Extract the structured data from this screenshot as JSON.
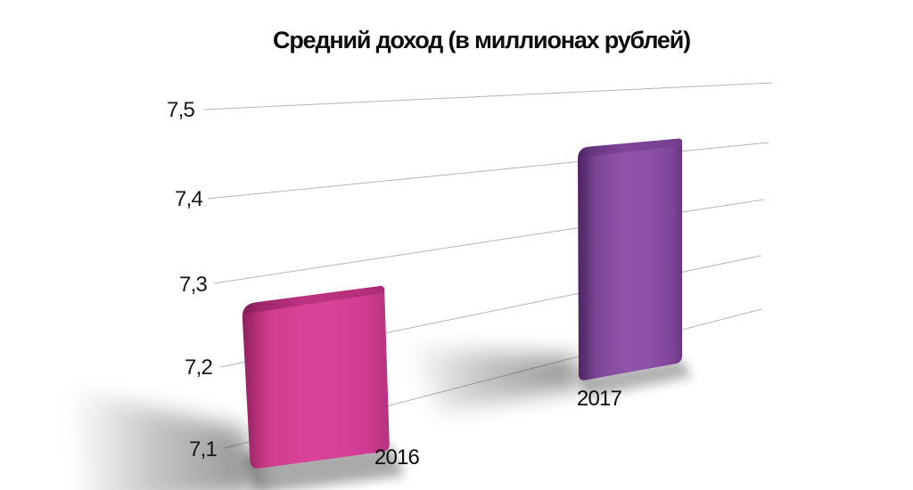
{
  "title": "Средний доход (в миллионах рублей)",
  "chart_data": {
    "type": "bar",
    "title": "Средний доход (в миллионах рублей)",
    "categories": [
      "2016",
      "2017"
    ],
    "values": [
      7.27,
      7.42
    ],
    "xlabel": "",
    "ylabel": "",
    "ylim": [
      7.0,
      7.5
    ],
    "yticks": [
      "7,5",
      "7,4",
      "7,3",
      "7,2",
      "7,1"
    ],
    "ytick_values": [
      7.5,
      7.4,
      7.3,
      7.2,
      7.1
    ],
    "grid": true,
    "legend": false,
    "style": "3d-perspective",
    "series_colors": [
      "#d64398",
      "#8e51a8"
    ],
    "background": "#ffffff"
  }
}
